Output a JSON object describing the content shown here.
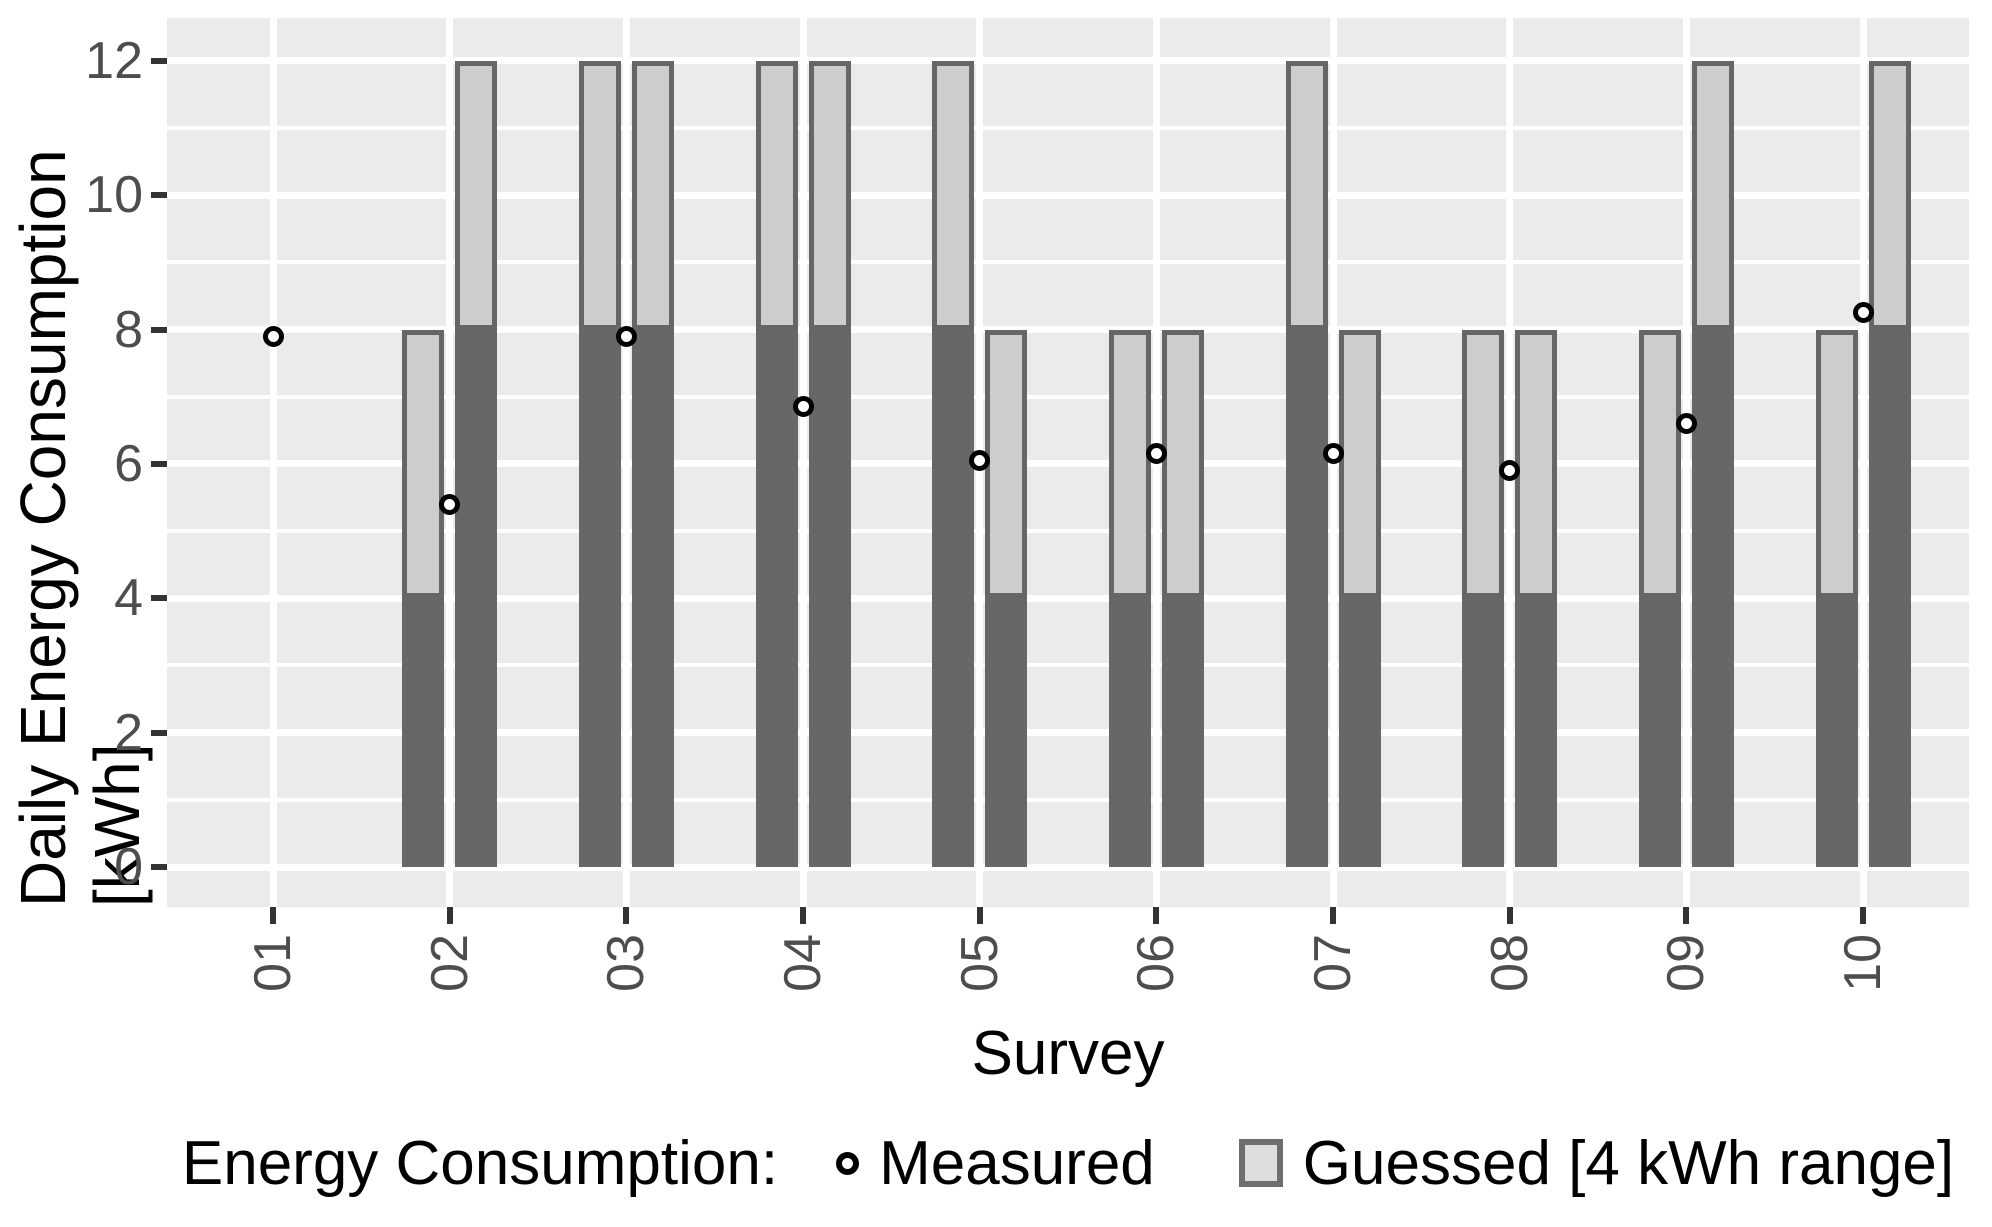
{
  "y_axis": {
    "title": "Daily Energy Consumption [kWh]",
    "tick_labels": [
      "0",
      "2",
      "4",
      "6",
      "8",
      "10",
      "12"
    ]
  },
  "x_axis": {
    "title": "Survey",
    "tick_labels": [
      "01",
      "02",
      "03",
      "04",
      "05",
      "06",
      "07",
      "08",
      "09",
      "10"
    ]
  },
  "legend": {
    "title": "Energy Consumption:",
    "measured_label": "Measured",
    "guessed_label": "Guessed [4 kWh range]"
  },
  "colors": {
    "panel_bg": "#ebebeb",
    "grid": "#ffffff",
    "bar_dark": "#676767",
    "bar_light": "#cdcdcd",
    "bar_border": "#666666",
    "point_ring": "#000000",
    "point_fill": "#ffffff",
    "tick_text": "#4d4d4d",
    "title_text": "#000000"
  },
  "chart_data": {
    "type": "bar",
    "title": "",
    "xlabel": "Survey",
    "ylabel": "Daily Energy Consumption [kWh]",
    "ylim": [
      0,
      12
    ],
    "y_major_ticks": [
      0,
      2,
      4,
      6,
      8,
      10,
      12
    ],
    "y_minor_ticks": [
      1,
      3,
      5,
      7,
      9,
      11
    ],
    "grid": "white-on-gray, major and minor horizontal, major vertical at category centers",
    "legend_position": "bottom",
    "categories": [
      "01",
      "02",
      "03",
      "04",
      "05",
      "06",
      "07",
      "08",
      "09",
      "10"
    ],
    "note": "Each survey shows up to two guessed-range bars (light gray segment spans the 4 kWh guessed range; dark gray fills from 0 up to the range lower bound) plus one measured open-circle point.",
    "surveys": [
      {
        "label": "01",
        "guessed_ranges": [],
        "measured": 7.9
      },
      {
        "label": "02",
        "guessed_ranges": [
          [
            4,
            8
          ],
          [
            8,
            12
          ]
        ],
        "measured": 5.4
      },
      {
        "label": "03",
        "guessed_ranges": [
          [
            8,
            12
          ],
          [
            8,
            12
          ]
        ],
        "measured": 7.9
      },
      {
        "label": "04",
        "guessed_ranges": [
          [
            8,
            12
          ],
          [
            8,
            12
          ]
        ],
        "measured": 6.85
      },
      {
        "label": "05",
        "guessed_ranges": [
          [
            8,
            12
          ],
          [
            4,
            8
          ]
        ],
        "measured": 6.05
      },
      {
        "label": "06",
        "guessed_ranges": [
          [
            4,
            8
          ],
          [
            4,
            8
          ]
        ],
        "measured": 6.15
      },
      {
        "label": "07",
        "guessed_ranges": [
          [
            8,
            12
          ],
          [
            4,
            8
          ]
        ],
        "measured": 6.15
      },
      {
        "label": "08",
        "guessed_ranges": [
          [
            4,
            8
          ],
          [
            4,
            8
          ]
        ],
        "measured": 5.9
      },
      {
        "label": "09",
        "guessed_ranges": [
          [
            4,
            8
          ],
          [
            8,
            12
          ]
        ],
        "measured": 6.6
      },
      {
        "label": "10",
        "guessed_ranges": [
          [
            4,
            8
          ],
          [
            8,
            12
          ]
        ],
        "measured": 8.25
      }
    ]
  }
}
